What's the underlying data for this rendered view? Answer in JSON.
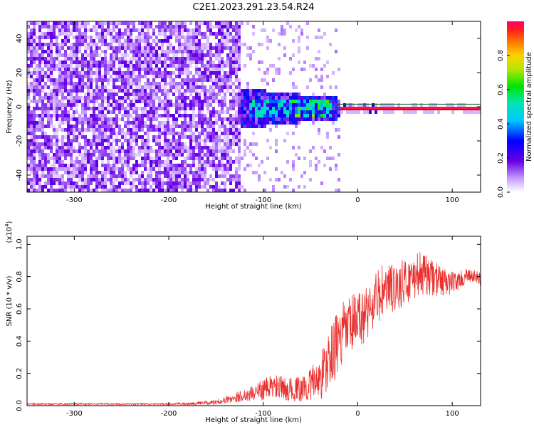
{
  "title": "C2E1.2023.291.23.54.R24",
  "chart_data": [
    {
      "type": "heatmap",
      "xlabel": "Height of straight line (km)",
      "ylabel": "Frequency (Hz)",
      "xlim": [
        -350,
        130
      ],
      "ylim": [
        -50,
        50
      ],
      "xticks": [
        -300,
        -200,
        -100,
        0,
        100
      ],
      "yticks": [
        -40,
        -20,
        0,
        20,
        40
      ],
      "colorbar": {
        "label": "Normalized spectral amplitude",
        "range": [
          0.0,
          1.0
        ],
        "ticks": [
          "0.0",
          "0.2",
          "0.4",
          "0.6",
          "0.8"
        ]
      },
      "description_regions": [
        {
          "x_range": [
            -350,
            -120
          ],
          "freq_range": [
            -50,
            50
          ],
          "amplitude": 0.1
        },
        {
          "x_range": [
            -160,
            -20
          ],
          "freq_range": [
            -12,
            14
          ],
          "amplitude": 0.25
        },
        {
          "x_range": [
            -120,
            -30
          ],
          "freq_range": [
            -5,
            6
          ],
          "amplitude": 0.45
        },
        {
          "x_range": [
            -25,
            130
          ],
          "freq_range": [
            -1.5,
            1.5
          ],
          "amplitude": 1.0
        }
      ]
    },
    {
      "type": "line",
      "xlabel": "Height of straight line (km)",
      "ylabel": "SNR (10 * v/v)",
      "yscale_label": "(x10^4)",
      "xlim": [
        -350,
        130
      ],
      "ylim": [
        0.0,
        1.05
      ],
      "xticks": [
        -300,
        -200,
        -100,
        0,
        100
      ],
      "yticks": [
        "0.0",
        "0.2",
        "0.4",
        "0.6",
        "0.8",
        "1.0"
      ],
      "series": [
        {
          "color": "#e8312f",
          "x": [
            -350,
            -300,
            -250,
            -200,
            -170,
            -150,
            -130,
            -110,
            -90,
            -75,
            -60,
            -45,
            -35,
            -25,
            -15,
            -5,
            5,
            15,
            25,
            35,
            45,
            55,
            65,
            75,
            85,
            95,
            105,
            115,
            125,
            130
          ],
          "y": [
            0.01,
            0.01,
            0.01,
            0.01,
            0.015,
            0.02,
            0.05,
            0.08,
            0.12,
            0.1,
            0.1,
            0.15,
            0.22,
            0.35,
            0.45,
            0.5,
            0.55,
            0.62,
            0.7,
            0.72,
            0.75,
            0.78,
            0.82,
            0.8,
            0.78,
            0.76,
            0.77,
            0.8,
            0.8,
            0.78
          ],
          "noise_amplitude": [
            0.005,
            0.005,
            0.005,
            0.005,
            0.01,
            0.015,
            0.03,
            0.05,
            0.08,
            0.07,
            0.08,
            0.12,
            0.18,
            0.2,
            0.2,
            0.2,
            0.18,
            0.18,
            0.18,
            0.16,
            0.15,
            0.14,
            0.14,
            0.12,
            0.1,
            0.08,
            0.06,
            0.05,
            0.04,
            0.04
          ]
        }
      ]
    }
  ]
}
